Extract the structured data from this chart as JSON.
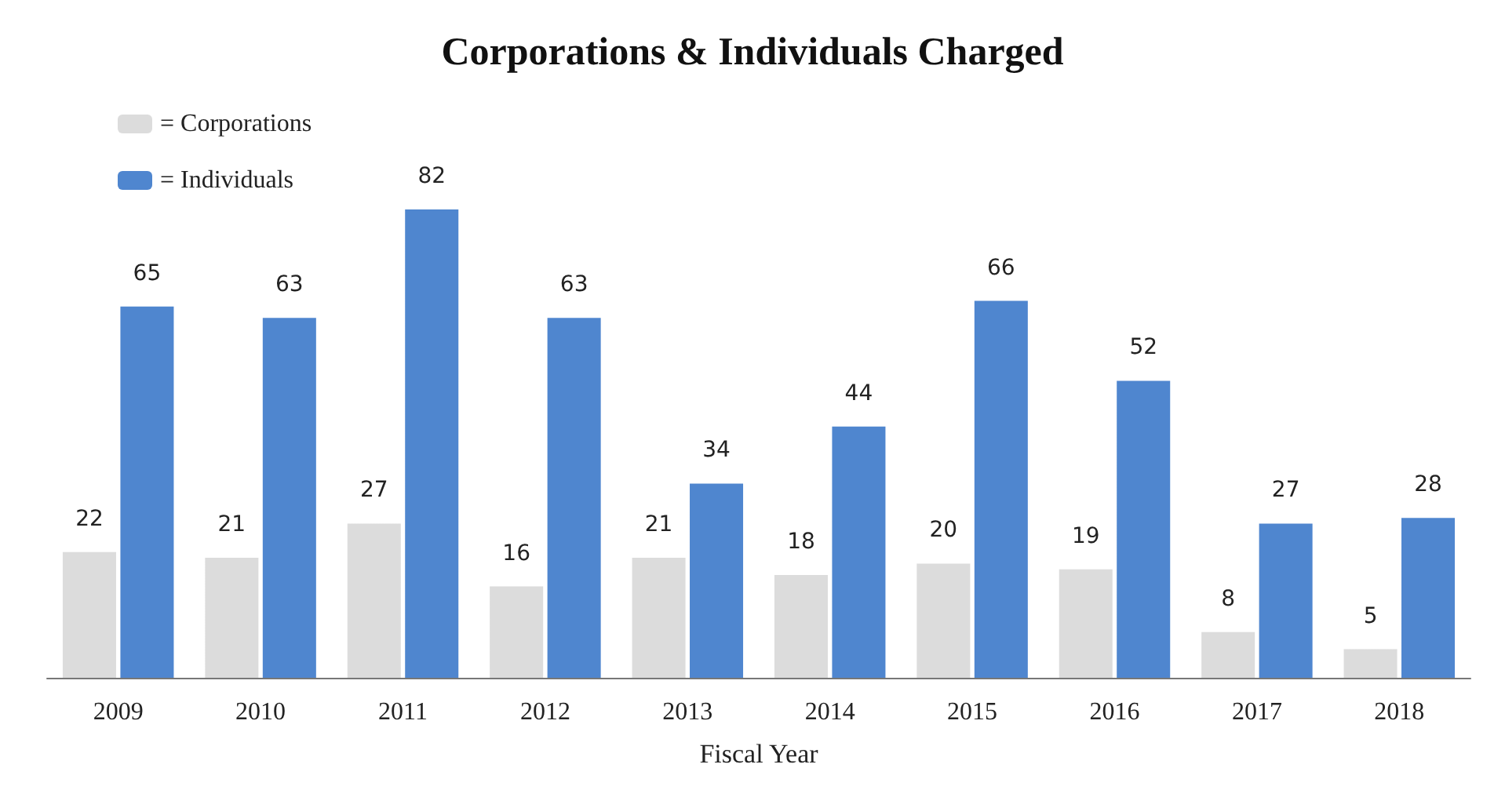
{
  "chart_data": {
    "type": "bar",
    "title": "Corporations & Individuals Charged",
    "xlabel": "Fiscal Year",
    "categories": [
      "2009",
      "2010",
      "2011",
      "2012",
      "2013",
      "2014",
      "2015",
      "2016",
      "2017",
      "2018"
    ],
    "series": [
      {
        "name": "= Corporations",
        "color": "#dcdcdc",
        "values": [
          22,
          21,
          27,
          16,
          21,
          18,
          20,
          19,
          8,
          5
        ]
      },
      {
        "name": "= Individuals",
        "color": "#4f86cf",
        "values": [
          65,
          63,
          82,
          63,
          34,
          44,
          66,
          52,
          27,
          28
        ]
      }
    ],
    "data_labels": true,
    "legend": "top left"
  }
}
